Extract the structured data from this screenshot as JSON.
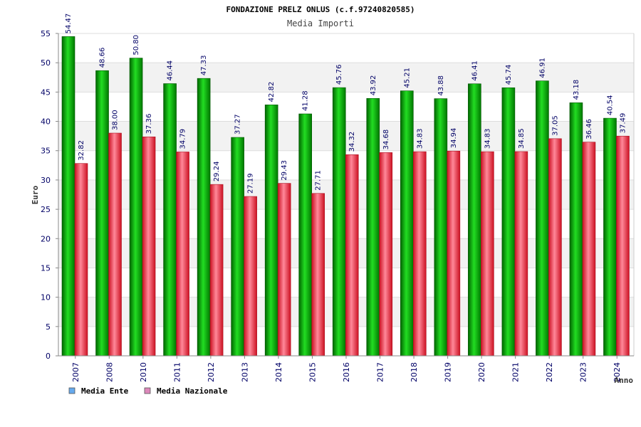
{
  "chart_data": {
    "type": "bar",
    "title": "FONDAZIONE PRELZ ONLUS (c.f.97240820585)",
    "subtitle": "Media Importi",
    "xlabel": "Anno",
    "ylabel": "Euro",
    "ylim": [
      0,
      55
    ],
    "yticks": [
      "0",
      "5",
      "10",
      "15",
      "20",
      "25",
      "30",
      "35",
      "40",
      "45",
      "50",
      "55"
    ],
    "categories": [
      "2007",
      "2008",
      "2010",
      "2011",
      "2012",
      "2013",
      "2014",
      "2015",
      "2016",
      "2017",
      "2018",
      "2019",
      "2020",
      "2021",
      "2022",
      "2023",
      "2024"
    ],
    "series": [
      {
        "name": "Media Ente",
        "color": "#00aa00",
        "legend_color": "#66aaee",
        "values": [
          54.47,
          48.66,
          50.8,
          46.44,
          47.33,
          37.27,
          42.82,
          41.28,
          45.76,
          43.92,
          45.21,
          43.88,
          46.41,
          45.74,
          46.91,
          43.18,
          40.54
        ],
        "labels": [
          "54.47",
          "48.66",
          "50.80",
          "46.44",
          "47.33",
          "37.27",
          "42.82",
          "41.28",
          "45.76",
          "43.92",
          "45.21",
          "43.88",
          "46.41",
          "45.74",
          "46.91",
          "43.18",
          "40.54"
        ]
      },
      {
        "name": "Media Nazionale",
        "color": "#ee3344",
        "legend_color": "#dd88bb",
        "values": [
          32.82,
          38.0,
          37.36,
          34.79,
          29.24,
          27.19,
          29.43,
          27.71,
          34.32,
          34.68,
          34.83,
          34.94,
          34.83,
          34.85,
          37.05,
          36.46,
          37.49
        ],
        "labels": [
          "32.82",
          "38.00",
          "37.36",
          "34.79",
          "29.24",
          "27.19",
          "29.43",
          "27.71",
          "34.32",
          "34.68",
          "34.83",
          "34.94",
          "34.83",
          "34.85",
          "37.05",
          "36.46",
          "37.49"
        ]
      }
    ],
    "grid": true,
    "legend_position": "bottom-left"
  }
}
